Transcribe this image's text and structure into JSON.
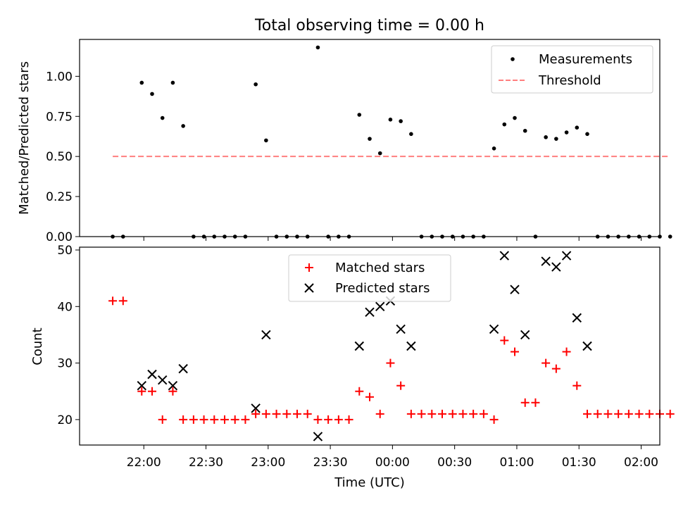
{
  "figure": {
    "title": "Total observing time = 0.00 h"
  },
  "chart_data": [
    {
      "type": "scatter",
      "title": "Total observing time = 0.00 h",
      "xlabel": "",
      "ylabel": "Matched/Predicted stars",
      "ylim": [
        0.0,
        1.23
      ],
      "xlim_minutes_after_midnight": [
        -151,
        129
      ],
      "yticks": [
        0.0,
        0.25,
        0.5,
        0.75,
        1.0
      ],
      "ytick_labels": [
        "0.00",
        "0.25",
        "0.50",
        "0.75",
        "1.00"
      ],
      "x_time_axis": "UTC",
      "legend": {
        "position": "top-right",
        "entries": [
          "Measurements",
          "Threshold"
        ]
      },
      "series": [
        {
          "name": "Measurements",
          "marker": "dot",
          "color": "#000000",
          "points": [
            [
              "21:45",
              0.0
            ],
            [
              "21:50",
              0.0
            ],
            [
              "21:59",
              0.96
            ],
            [
              "22:04",
              0.89
            ],
            [
              "22:09",
              0.74
            ],
            [
              "22:14",
              0.96
            ],
            [
              "22:19",
              0.69
            ],
            [
              "22:24",
              0.0
            ],
            [
              "22:29",
              0.0
            ],
            [
              "22:34",
              0.0
            ],
            [
              "22:39",
              0.0
            ],
            [
              "22:44",
              0.0
            ],
            [
              "22:49",
              0.0
            ],
            [
              "22:54",
              0.95
            ],
            [
              "22:59",
              0.6
            ],
            [
              "23:04",
              0.0
            ],
            [
              "23:09",
              0.0
            ],
            [
              "23:14",
              0.0
            ],
            [
              "23:19",
              0.0
            ],
            [
              "23:24",
              1.18
            ],
            [
              "23:29",
              0.0
            ],
            [
              "23:34",
              0.0
            ],
            [
              "23:39",
              0.0
            ],
            [
              "23:44",
              0.76
            ],
            [
              "23:49",
              0.61
            ],
            [
              "23:54",
              0.52
            ],
            [
              "23:59",
              0.73
            ],
            [
              "00:04",
              0.72
            ],
            [
              "00:09",
              0.64
            ],
            [
              "00:14",
              0.0
            ],
            [
              "00:19",
              0.0
            ],
            [
              "00:24",
              0.0
            ],
            [
              "00:29",
              0.0
            ],
            [
              "00:34",
              0.0
            ],
            [
              "00:39",
              0.0
            ],
            [
              "00:44",
              0.0
            ],
            [
              "00:49",
              0.55
            ],
            [
              "00:54",
              0.7
            ],
            [
              "00:59",
              0.74
            ],
            [
              "01:04",
              0.66
            ],
            [
              "01:09",
              0.0
            ],
            [
              "01:14",
              0.62
            ],
            [
              "01:19",
              0.61
            ],
            [
              "01:24",
              0.65
            ],
            [
              "01:29",
              0.68
            ],
            [
              "01:34",
              0.64
            ],
            [
              "01:39",
              0.0
            ],
            [
              "01:44",
              0.0
            ],
            [
              "01:49",
              0.0
            ],
            [
              "01:54",
              0.0
            ],
            [
              "01:59",
              0.0
            ],
            [
              "02:04",
              0.0
            ],
            [
              "02:09",
              0.0
            ],
            [
              "02:14",
              0.0
            ]
          ]
        },
        {
          "name": "Threshold",
          "marker": "dashed-line",
          "color": "#ff7f7f",
          "points": [
            [
              "21:45",
              0.5
            ],
            [
              "02:14",
              0.5
            ]
          ]
        }
      ]
    },
    {
      "type": "scatter",
      "xlabel": "Time (UTC)",
      "ylabel": "Count",
      "ylim": [
        15.5,
        50.5
      ],
      "xlim_minutes_after_midnight": [
        -151,
        129
      ],
      "yticks": [
        20,
        30,
        40,
        50
      ],
      "ytick_labels": [
        "20",
        "30",
        "40",
        "50"
      ],
      "xticks": [
        "22:00",
        "22:30",
        "23:00",
        "23:30",
        "00:00",
        "00:30",
        "01:00",
        "01:30",
        "02:00"
      ],
      "legend": {
        "position": "upper-center",
        "entries": [
          "Matched stars",
          "Predicted stars"
        ]
      },
      "series": [
        {
          "name": "Matched stars",
          "marker": "plus",
          "color": "#ff0000",
          "points": [
            [
              "21:45",
              41
            ],
            [
              "21:50",
              41
            ],
            [
              "21:59",
              25
            ],
            [
              "22:04",
              25
            ],
            [
              "22:09",
              20
            ],
            [
              "22:14",
              25
            ],
            [
              "22:19",
              20
            ],
            [
              "22:24",
              20
            ],
            [
              "22:29",
              20
            ],
            [
              "22:34",
              20
            ],
            [
              "22:39",
              20
            ],
            [
              "22:44",
              20
            ],
            [
              "22:49",
              20
            ],
            [
              "22:54",
              21
            ],
            [
              "22:59",
              21
            ],
            [
              "23:04",
              21
            ],
            [
              "23:09",
              21
            ],
            [
              "23:14",
              21
            ],
            [
              "23:19",
              21
            ],
            [
              "23:24",
              20
            ],
            [
              "23:29",
              20
            ],
            [
              "23:34",
              20
            ],
            [
              "23:39",
              20
            ],
            [
              "23:44",
              25
            ],
            [
              "23:49",
              24
            ],
            [
              "23:54",
              21
            ],
            [
              "23:59",
              30
            ],
            [
              "00:04",
              26
            ],
            [
              "00:09",
              21
            ],
            [
              "00:14",
              21
            ],
            [
              "00:19",
              21
            ],
            [
              "00:24",
              21
            ],
            [
              "00:29",
              21
            ],
            [
              "00:34",
              21
            ],
            [
              "00:39",
              21
            ],
            [
              "00:44",
              21
            ],
            [
              "00:49",
              20
            ],
            [
              "00:54",
              34
            ],
            [
              "00:59",
              32
            ],
            [
              "01:04",
              23
            ],
            [
              "01:09",
              23
            ],
            [
              "01:14",
              30
            ],
            [
              "01:19",
              29
            ],
            [
              "01:24",
              32
            ],
            [
              "01:29",
              26
            ],
            [
              "01:34",
              21
            ],
            [
              "01:39",
              21
            ],
            [
              "01:44",
              21
            ],
            [
              "01:49",
              21
            ],
            [
              "01:54",
              21
            ],
            [
              "01:59",
              21
            ],
            [
              "02:04",
              21
            ],
            [
              "02:09",
              21
            ],
            [
              "02:14",
              21
            ]
          ]
        },
        {
          "name": "Predicted stars",
          "marker": "x",
          "color": "#000000",
          "points": [
            [
              "21:59",
              26
            ],
            [
              "22:04",
              28
            ],
            [
              "22:09",
              27
            ],
            [
              "22:14",
              26
            ],
            [
              "22:19",
              29
            ],
            [
              "22:54",
              22
            ],
            [
              "22:59",
              35
            ],
            [
              "23:24",
              17
            ],
            [
              "23:44",
              33
            ],
            [
              "23:49",
              39
            ],
            [
              "23:54",
              40
            ],
            [
              "23:59",
              41
            ],
            [
              "00:04",
              36
            ],
            [
              "00:09",
              33
            ],
            [
              "00:49",
              36
            ],
            [
              "00:54",
              49
            ],
            [
              "00:59",
              43
            ],
            [
              "01:04",
              35
            ],
            [
              "01:14",
              48
            ],
            [
              "01:19",
              47
            ],
            [
              "01:24",
              49
            ],
            [
              "01:29",
              38
            ],
            [
              "01:34",
              33
            ]
          ]
        }
      ]
    }
  ]
}
